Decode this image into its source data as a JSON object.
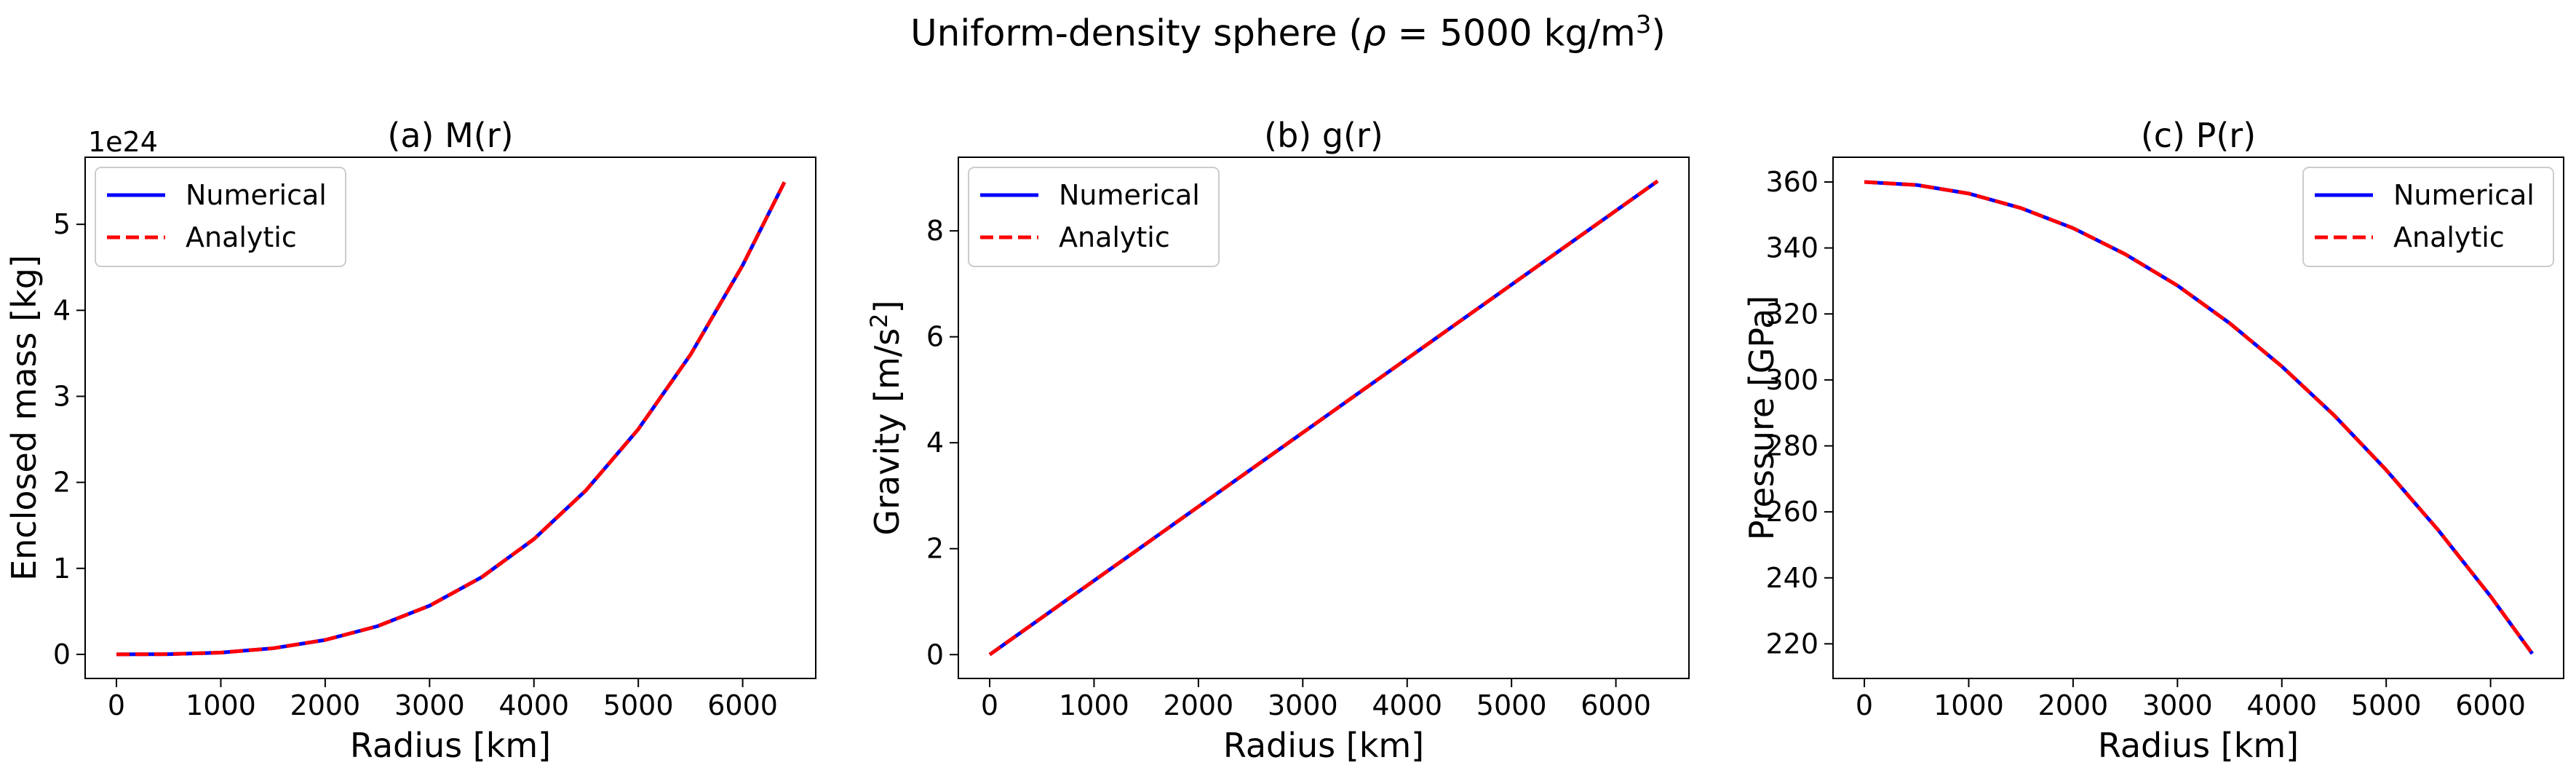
{
  "figure": {
    "suptitle_prefix": "Uniform-density sphere (",
    "suptitle_symbol": "ρ",
    "suptitle_middle": " = 5000 kg/m",
    "suptitle_exp": "3",
    "suptitle_suffix": ")"
  },
  "colors": {
    "numerical": "#0000ff",
    "analytic": "#ff0000"
  },
  "chart_data": [
    {
      "type": "line",
      "title": "(a) M(r)",
      "xlabel": "Radius [km]",
      "ylabel": "Enclosed mass [kg]",
      "offset_text": "1e24",
      "xlim": [
        -300,
        6700
      ],
      "ylim": [
        -0.28,
        5.78
      ],
      "xticks": [
        0,
        1000,
        2000,
        3000,
        4000,
        5000,
        6000
      ],
      "xtick_labels": [
        "0",
        "1000",
        "2000",
        "3000",
        "4000",
        "5000",
        "6000"
      ],
      "yticks": [
        0,
        1,
        2,
        3,
        4,
        5
      ],
      "ytick_labels": [
        "0",
        "1",
        "2",
        "3",
        "4",
        "5"
      ],
      "legend_position": "upper-left",
      "series": [
        {
          "name": "Numerical",
          "color": "#0000ff",
          "style": "solid",
          "x": [
            0,
            500,
            1000,
            1500,
            2000,
            2500,
            3000,
            3500,
            4000,
            4500,
            5000,
            5500,
            6000,
            6400
          ],
          "y": [
            0,
            0.0026,
            0.0209,
            0.0707,
            0.1676,
            0.3272,
            0.5655,
            0.898,
            1.3404,
            1.9085,
            2.618,
            3.4846,
            4.5239,
            5.4898
          ]
        },
        {
          "name": "Analytic",
          "color": "#ff0000",
          "style": "dashed",
          "x": [
            0,
            500,
            1000,
            1500,
            2000,
            2500,
            3000,
            3500,
            4000,
            4500,
            5000,
            5500,
            6000,
            6400
          ],
          "y": [
            0,
            0.0026,
            0.0209,
            0.0707,
            0.1676,
            0.3272,
            0.5655,
            0.898,
            1.3404,
            1.9085,
            2.618,
            3.4846,
            4.5239,
            5.4898
          ]
        }
      ]
    },
    {
      "type": "line",
      "title": "(b) g(r)",
      "xlabel": "Radius [km]",
      "ylabel_prefix": "Gravity [m/s",
      "ylabel_exp": "2",
      "ylabel_suffix": "]",
      "xlim": [
        -300,
        6700
      ],
      "ylim": [
        -0.45,
        9.39
      ],
      "xticks": [
        0,
        1000,
        2000,
        3000,
        4000,
        5000,
        6000
      ],
      "xtick_labels": [
        "0",
        "1000",
        "2000",
        "3000",
        "4000",
        "5000",
        "6000"
      ],
      "yticks": [
        0,
        2,
        4,
        6,
        8
      ],
      "ytick_labels": [
        "0",
        "2",
        "4",
        "6",
        "8"
      ],
      "legend_position": "upper-left",
      "series": [
        {
          "name": "Numerical",
          "color": "#0000ff",
          "style": "solid",
          "x": [
            0,
            6400
          ],
          "y": [
            0,
            8.94
          ]
        },
        {
          "name": "Analytic",
          "color": "#ff0000",
          "style": "dashed",
          "x": [
            0,
            6400
          ],
          "y": [
            0,
            8.94
          ]
        }
      ]
    },
    {
      "type": "line",
      "title": "(c) P(r)",
      "xlabel": "Radius [km]",
      "ylabel": "Pressure [GPa]",
      "xlim": [
        -300,
        6700
      ],
      "ylim": [
        209.5,
        367.5
      ],
      "xticks": [
        0,
        1000,
        2000,
        3000,
        4000,
        5000,
        6000
      ],
      "xtick_labels": [
        "0",
        "1000",
        "2000",
        "3000",
        "4000",
        "5000",
        "6000"
      ],
      "yticks": [
        220,
        240,
        260,
        280,
        300,
        320,
        340,
        360
      ],
      "ytick_labels": [
        "220",
        "240",
        "260",
        "280",
        "300",
        "320",
        "340",
        "360"
      ],
      "legend_position": "upper-right",
      "series": [
        {
          "name": "Numerical",
          "color": "#0000ff",
          "style": "solid",
          "x": [
            0,
            500,
            1000,
            1500,
            2000,
            2500,
            3000,
            3500,
            4000,
            4500,
            5000,
            5500,
            6000,
            6400
          ],
          "y": [
            360,
            359.1,
            356.5,
            352.1,
            346,
            338.1,
            328.6,
            317.2,
            304.1,
            289.3,
            272.7,
            254.4,
            234.4,
            217
          ]
        },
        {
          "name": "Analytic",
          "color": "#ff0000",
          "style": "dashed",
          "x": [
            0,
            500,
            1000,
            1500,
            2000,
            2500,
            3000,
            3500,
            4000,
            4500,
            5000,
            5500,
            6000,
            6400
          ],
          "y": [
            360,
            359.1,
            356.5,
            352.1,
            346,
            338.1,
            328.6,
            317.2,
            304.1,
            289.3,
            272.7,
            254.4,
            234.4,
            217
          ]
        }
      ]
    }
  ]
}
